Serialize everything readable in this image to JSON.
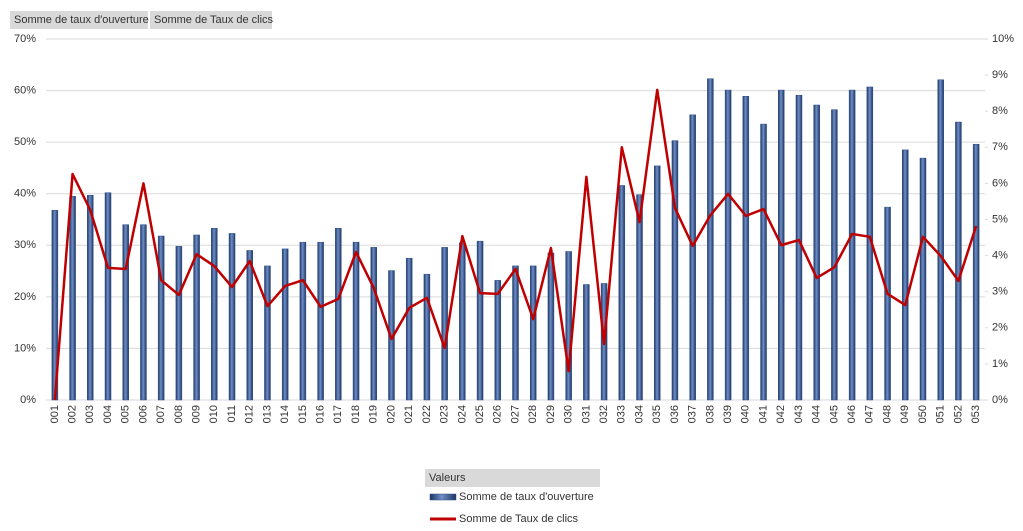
{
  "field_buttons": [
    "Somme  de taux d'ouverture",
    "Somme  de Taux de clics"
  ],
  "chart_data": {
    "type": "bar",
    "categories": [
      "001",
      "002",
      "003",
      "004",
      "005",
      "006",
      "007",
      "008",
      "009",
      "010",
      "011",
      "012",
      "013",
      "014",
      "015",
      "016",
      "017",
      "018",
      "019",
      "020",
      "021",
      "022",
      "023",
      "024",
      "025",
      "026",
      "027",
      "028",
      "029",
      "030",
      "031",
      "032",
      "033",
      "034",
      "035",
      "036",
      "037",
      "038",
      "039",
      "040",
      "041",
      "042",
      "043",
      "044",
      "045",
      "046",
      "047",
      "048",
      "049",
      "050",
      "051",
      "052",
      "053"
    ],
    "series": [
      {
        "name": "Somme de taux d'ouverture",
        "type": "bar",
        "color": "#2f4f8a",
        "values": [
          36.8,
          39.5,
          39.7,
          40.2,
          34,
          34,
          31.8,
          29.8,
          32,
          33.3,
          32.3,
          29,
          26,
          29.3,
          30.6,
          30.6,
          33.3,
          30.6,
          29.6,
          25.1,
          27.5,
          24.4,
          29.6,
          30.5,
          30.8,
          23.2,
          26,
          26,
          28.5,
          28.8,
          22.4,
          22.6,
          41.6,
          39.8,
          45.4,
          50.3,
          55.3,
          62.3,
          60.1,
          58.9,
          53.5,
          60.1,
          59.1,
          57.2,
          56.3,
          60.1,
          60.7,
          37.4,
          48.5,
          46.9,
          62.1,
          53.9,
          49.6
        ]
      },
      {
        "name": "Somme de Taux de clics",
        "type": "line",
        "axis": "y2",
        "color": "#c00000",
        "values": [
          0,
          6.26,
          5.26,
          3.66,
          3.63,
          6.0,
          3.32,
          2.91,
          4.04,
          3.71,
          3.13,
          3.85,
          2.6,
          3.16,
          3.32,
          2.58,
          2.8,
          4.1,
          3.1,
          1.69,
          2.55,
          2.83,
          1.44,
          4.54,
          2.96,
          2.94,
          3.63,
          2.24,
          4.21,
          0.8,
          6.18,
          1.55,
          7.0,
          4.93,
          8.59,
          5.32,
          4.27,
          5.12,
          5.71,
          5.1,
          5.29,
          4.29,
          4.43,
          3.38,
          3.68,
          4.6,
          4.52,
          2.94,
          2.63,
          4.52,
          3.99,
          3.3,
          4.82
        ]
      }
    ],
    "ylim": [
      0,
      70
    ],
    "yticks": [
      {
        "value": 0,
        "label": "0%"
      },
      {
        "value": 10,
        "label": "10%"
      },
      {
        "value": 20,
        "label": "20%"
      },
      {
        "value": 30,
        "label": "30%"
      },
      {
        "value": 40,
        "label": "40%"
      },
      {
        "value": 50,
        "label": "50%"
      },
      {
        "value": 60,
        "label": "60%"
      },
      {
        "value": 70,
        "label": "70%"
      }
    ],
    "y2lim": [
      0,
      10
    ],
    "y2ticks": [
      {
        "value": 0,
        "label": "0%"
      },
      {
        "value": 1,
        "label": "1%"
      },
      {
        "value": 2,
        "label": "2%"
      },
      {
        "value": 3,
        "label": "3%"
      },
      {
        "value": 4,
        "label": "4%"
      },
      {
        "value": 5,
        "label": "5%"
      },
      {
        "value": 6,
        "label": "6%"
      },
      {
        "value": 7,
        "label": "7%"
      },
      {
        "value": 8,
        "label": "8%"
      },
      {
        "value": 9,
        "label": "9%"
      },
      {
        "value": 10,
        "label": "10%"
      }
    ],
    "grid": true,
    "legend_title": "Valeurs",
    "legend": "bottom"
  }
}
